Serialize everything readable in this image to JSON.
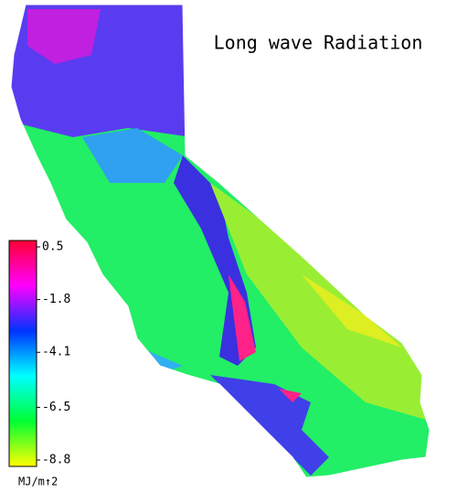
{
  "title": "Long wave Radiation",
  "colorbar": {
    "ticks": [
      0.5,
      -1.8,
      -4.1,
      -6.5,
      -8.8
    ],
    "range": [
      -8.8,
      0.5
    ],
    "unit": "MJ/m↑2",
    "colors": [
      "#ffff00",
      "#00ff33",
      "#00ffff",
      "#0033ff",
      "#ff00ff",
      "#ff0033"
    ]
  }
}
